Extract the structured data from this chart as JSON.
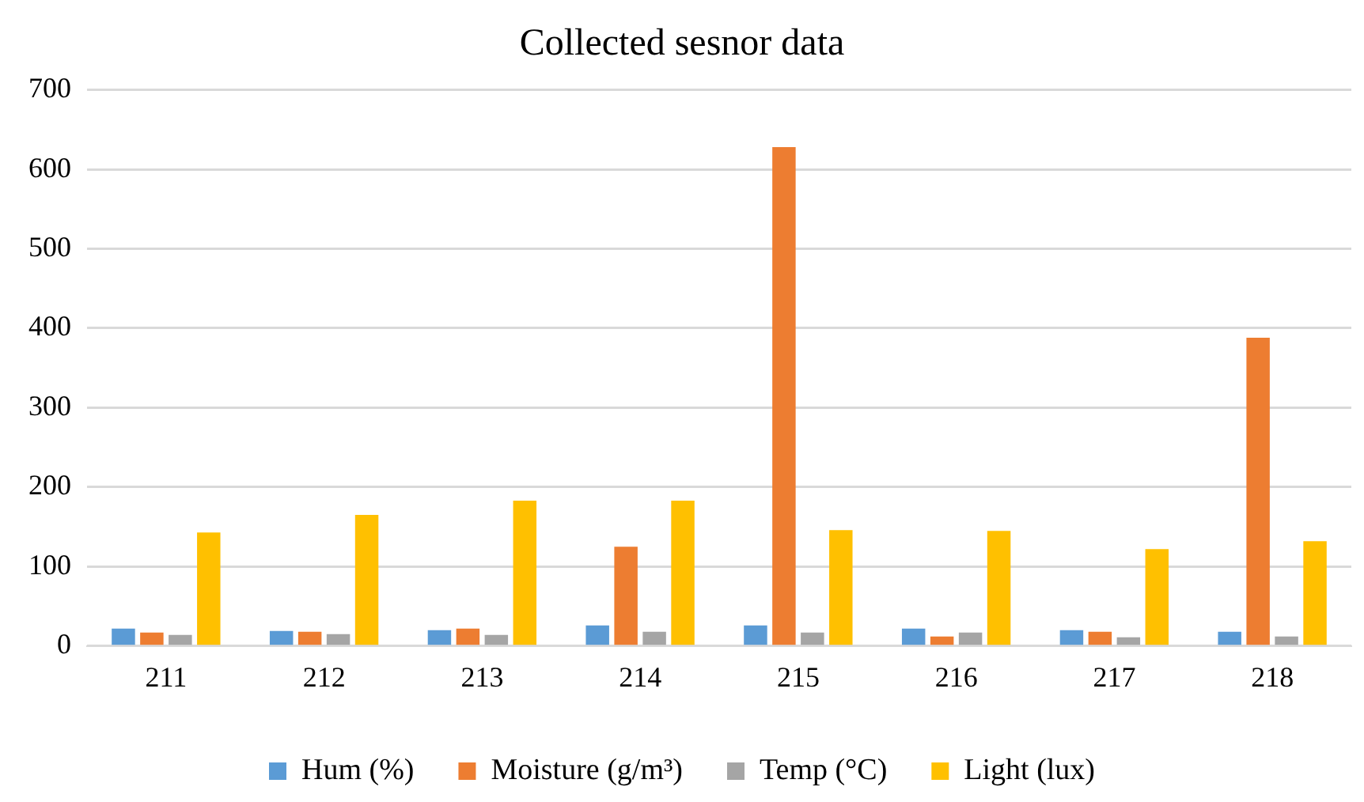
{
  "chart_data": {
    "type": "bar",
    "title": "Collected sesnor data",
    "categories": [
      "211",
      "212",
      "213",
      "214",
      "215",
      "216",
      "217",
      "218"
    ],
    "series": [
      {
        "name": "Hum (%)",
        "color": "#5b9bd5",
        "values": [
          22,
          19,
          20,
          26,
          26,
          22,
          20,
          18
        ]
      },
      {
        "name": "Moisture (g/m³)",
        "color": "#ed7d31",
        "values": [
          17,
          18,
          22,
          125,
          628,
          12,
          18,
          388
        ]
      },
      {
        "name": "Temp (°C)",
        "color": "#a5a5a5",
        "values": [
          14,
          15,
          14,
          18,
          17,
          17,
          11,
          12
        ]
      },
      {
        "name": "Light (lux)",
        "color": "#ffc000",
        "values": [
          143,
          165,
          183,
          183,
          146,
          145,
          122,
          132
        ]
      }
    ],
    "ylim": [
      0,
      700
    ],
    "yticks": [
      0,
      100,
      200,
      300,
      400,
      500,
      600,
      700
    ],
    "grid": "y",
    "legend": "bottom"
  }
}
